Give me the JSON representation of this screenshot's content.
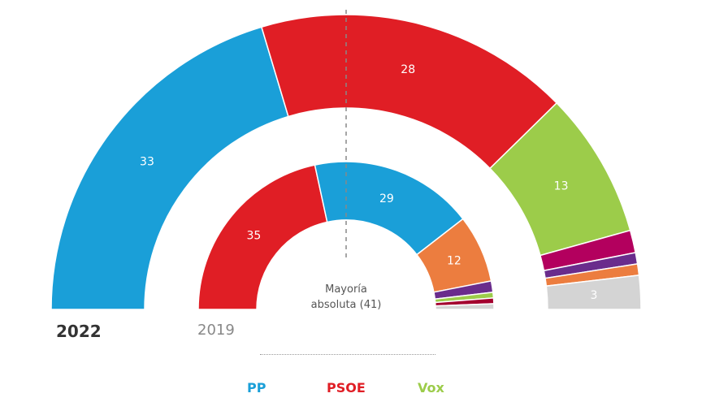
{
  "chart_data": {
    "type": "pie",
    "subtype": "parliament-semicircle",
    "title": "",
    "rings": [
      {
        "name": "2022",
        "radius_outer": 363,
        "radius_inner": 248,
        "seats": [
          {
            "party": "PP",
            "value": 33,
            "color": "#1a9fd8",
            "label": "33"
          },
          {
            "party": "PSOE",
            "value": 28,
            "color": "#e01e25",
            "label": "28"
          },
          {
            "party": "Vox",
            "value": 13,
            "color": "#9ccc4a",
            "label": "13"
          },
          {
            "party": "Other-magenta",
            "value": 2,
            "color": "#b3005e",
            "label": ""
          },
          {
            "party": "Other-purple",
            "value": 1,
            "color": "#6a2c8c",
            "label": ""
          },
          {
            "party": "Other-orange",
            "value": 1,
            "color": "#ec7d3f",
            "label": ""
          },
          {
            "party": "Other-grey",
            "value": 3,
            "color": "#d4d4d4",
            "label": "3"
          }
        ]
      },
      {
        "name": "2019",
        "radius_outer": 182,
        "radius_inner": 110,
        "seats": [
          {
            "party": "PSOE",
            "value": 35,
            "color": "#e01e25",
            "label": "35"
          },
          {
            "party": "PP",
            "value": 29,
            "color": "#1a9fd8",
            "label": "29"
          },
          {
            "party": "Other-orange",
            "value": 12,
            "color": "#ec7d3f",
            "label": "12"
          },
          {
            "party": "Other-purple",
            "value": 2,
            "color": "#6a2c8c",
            "label": ""
          },
          {
            "party": "Vox",
            "value": 1,
            "color": "#9ccc4a",
            "label": ""
          },
          {
            "party": "Other-darkred",
            "value": 1,
            "color": "#a3002e",
            "label": ""
          },
          {
            "party": "Other-grey",
            "value": 1,
            "color": "#d4d4d4",
            "label": ""
          }
        ]
      }
    ],
    "majority_line": {
      "label": "Mayoría absoluta (41)",
      "value": 41
    },
    "legend": [
      {
        "label": "PP",
        "color": "#1a9fd8"
      },
      {
        "label": "PSOE",
        "color": "#e01e25"
      },
      {
        "label": "Vox",
        "color": "#9ccc4a"
      }
    ]
  },
  "labels": {
    "y2022": "2022",
    "y2019": "2019",
    "maj1": "Mayoría",
    "maj2": "absoluta (41)"
  }
}
